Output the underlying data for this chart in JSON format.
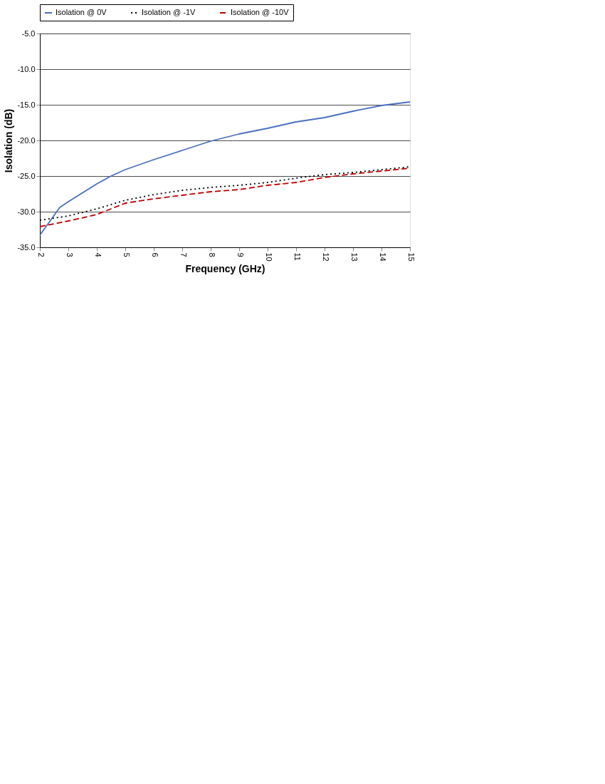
{
  "chart_data": {
    "type": "line",
    "xlabel": "Frequency (GHz)",
    "ylabel": "Isolation (dB)",
    "xlim": [
      2,
      15
    ],
    "xticks": [
      2,
      3,
      4,
      5,
      6,
      7,
      8,
      9,
      10,
      11,
      12,
      13,
      14,
      15
    ],
    "ylim": [
      -35,
      -5
    ],
    "yticks": [
      {
        "value": -35,
        "label": "-35.0"
      },
      {
        "value": -30,
        "label": "-30.0"
      },
      {
        "value": -25,
        "label": "-25.0"
      },
      {
        "value": -20,
        "label": "-20.0"
      },
      {
        "value": -15,
        "label": "-15.0"
      },
      {
        "value": -10,
        "label": "-10.0"
      },
      {
        "value": -5,
        "label": "-5.0"
      }
    ],
    "grid": "y",
    "legend": "top",
    "series": [
      {
        "name": "Isolation @ 0V",
        "color": "#4a6fc0",
        "line_style": "solid",
        "x": [
          2,
          2.7,
          3,
          4,
          4.5,
          5,
          6,
          7,
          8,
          9,
          10,
          11,
          12,
          13,
          14,
          15
        ],
        "values": [
          -33.3,
          -29.4,
          -28.6,
          -26.1,
          -25.0,
          -24.1,
          -22.7,
          -21.4,
          -20.1,
          -19.1,
          -18.3,
          -17.4,
          -16.8,
          -15.9,
          -15.1,
          -14.6
        ]
      },
      {
        "name": "Isolation @ -1V",
        "color": "#000000",
        "line_style": "dotted",
        "x": [
          2,
          3,
          4,
          5,
          6,
          7,
          8,
          9,
          10,
          11,
          12,
          13,
          14,
          15
        ],
        "values": [
          -31.2,
          -30.6,
          -29.6,
          -28.4,
          -27.6,
          -27.0,
          -26.6,
          -26.3,
          -25.9,
          -25.3,
          -24.8,
          -24.5,
          -24.1,
          -23.7
        ]
      },
      {
        "name": "Isolation @ -10V",
        "color": "#c00000",
        "line_style": "dashed",
        "x": [
          2,
          3,
          4,
          5,
          6,
          7,
          8,
          9,
          10,
          11,
          12,
          13,
          14,
          15
        ],
        "values": [
          -32.1,
          -31.3,
          -30.4,
          -28.8,
          -28.2,
          -27.7,
          -27.2,
          -26.9,
          -26.3,
          -25.9,
          -25.2,
          -24.7,
          -24.3,
          -23.9
        ]
      }
    ]
  }
}
